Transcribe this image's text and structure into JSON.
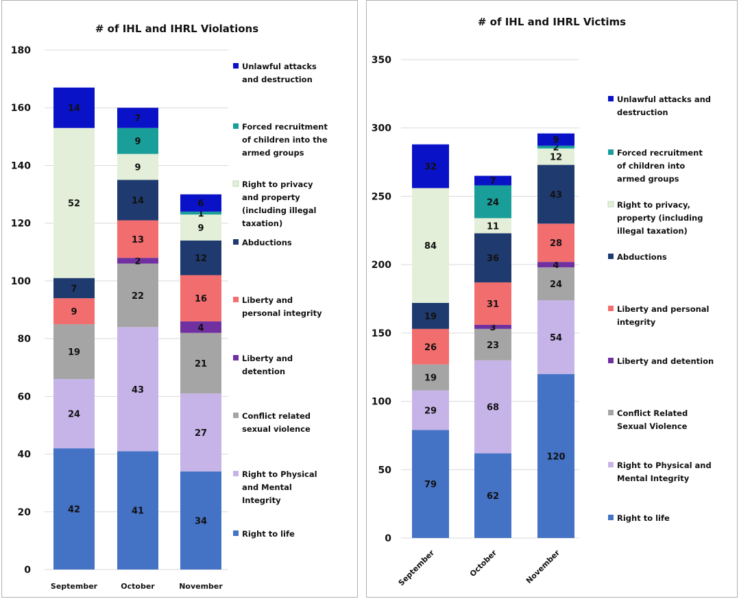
{
  "chart_data": [
    {
      "type": "bar",
      "stacked": true,
      "title": "# of IHL and IHRL Violations",
      "xlabel": "",
      "ylabel": "",
      "categories": [
        "September",
        "October",
        "November"
      ],
      "ylim": [
        0,
        180
      ],
      "yticks": [
        0,
        20,
        40,
        60,
        80,
        100,
        120,
        140,
        160,
        180
      ],
      "grid": true,
      "legend_position": "right",
      "series": [
        {
          "name": "Right to life",
          "values": [
            42,
            41,
            34
          ],
          "color": "#4472c4"
        },
        {
          "name": "Right to Physical and Mental Integrity",
          "values": [
            24,
            43,
            27
          ],
          "color": "#c6b3e8"
        },
        {
          "name": "Conflict related sexual violence",
          "values": [
            19,
            22,
            21
          ],
          "color": "#a5a5a5"
        },
        {
          "name": "Liberty and detention",
          "values": [
            0,
            2,
            4
          ],
          "color": "#7030a0"
        },
        {
          "name": "Liberty and personal integrity",
          "values": [
            9,
            13,
            16
          ],
          "color": "#f26d6d"
        },
        {
          "name": "Abductions",
          "values": [
            7,
            14,
            12
          ],
          "color": "#1f3a6e"
        },
        {
          "name": "Right to privacy and property (including illegal taxation)",
          "values": [
            52,
            9,
            9
          ],
          "color": "#e3efd9"
        },
        {
          "name": "Forced recruitment of children into the armed groups",
          "values": [
            0,
            9,
            1
          ],
          "color": "#1a9e9a"
        },
        {
          "name": "Unlawful attacks and destruction",
          "values": [
            14,
            7,
            6
          ],
          "color": "#0a12c8"
        }
      ],
      "legend": [
        {
          "lines": [
            "Unlawful attacks",
            "and destruction"
          ],
          "color": "#0a12c8"
        },
        {
          "lines": [
            "Forced recruitment",
            "of children into the",
            "armed groups"
          ],
          "color": "#1a9e9a"
        },
        {
          "lines": [
            "Right to privacy",
            "and property",
            "(including illegal",
            "taxation)"
          ],
          "color": "#e3efd9"
        },
        {
          "lines": [
            "Abductions"
          ],
          "color": "#1f3a6e"
        },
        {
          "lines": [
            "Liberty and",
            "personal integrity"
          ],
          "color": "#f26d6d"
        },
        {
          "lines": [
            "Liberty and",
            "detention"
          ],
          "color": "#7030a0"
        },
        {
          "lines": [
            "Conflict related",
            "sexual violence"
          ],
          "color": "#a5a5a5"
        },
        {
          "lines": [
            "Right to Physical",
            "and Mental",
            "Integrity"
          ],
          "color": "#c6b3e8"
        },
        {
          "lines": [
            "Right to life"
          ],
          "color": "#4472c4"
        }
      ]
    },
    {
      "type": "bar",
      "stacked": true,
      "title": "# of IHL and IHRL Victims",
      "xlabel": "",
      "ylabel": "",
      "categories": [
        "September",
        "October",
        "November"
      ],
      "ylim": [
        0,
        350
      ],
      "yticks": [
        0,
        50,
        100,
        150,
        200,
        250,
        300,
        350
      ],
      "grid": true,
      "legend_position": "right",
      "series": [
        {
          "name": "Right to life",
          "values": [
            79,
            62,
            120
          ],
          "color": "#4472c4"
        },
        {
          "name": "Right to Physical and Mental Integrity",
          "values": [
            29,
            68,
            54
          ],
          "color": "#c6b3e8"
        },
        {
          "name": "Conflict Related Sexual Violence",
          "values": [
            19,
            23,
            24
          ],
          "color": "#a5a5a5"
        },
        {
          "name": "Liberty and detention",
          "values": [
            0,
            3,
            4
          ],
          "color": "#7030a0"
        },
        {
          "name": "Liberty and personal integrity",
          "values": [
            26,
            31,
            28
          ],
          "color": "#f26d6d"
        },
        {
          "name": "Abductions",
          "values": [
            19,
            36,
            43
          ],
          "color": "#1f3a6e"
        },
        {
          "name": "Right to privacy, property (including illegal taxation)",
          "values": [
            84,
            11,
            12
          ],
          "color": "#e3efd9"
        },
        {
          "name": "Forced recruitment of children into armed groups",
          "values": [
            0,
            24,
            2
          ],
          "color": "#1a9e9a"
        },
        {
          "name": "Unlawful attacks and destruction",
          "values": [
            32,
            7,
            9
          ],
          "color": "#0a12c8"
        }
      ],
      "legend": [
        {
          "lines": [
            "Unlawful attacks and",
            "destruction"
          ],
          "color": "#0a12c8"
        },
        {
          "lines": [
            "Forced recruitment",
            "of children into",
            "armed groups"
          ],
          "color": "#1a9e9a"
        },
        {
          "lines": [
            "Right to privacy,",
            "property (including",
            "illegal taxation)"
          ],
          "color": "#e3efd9"
        },
        {
          "lines": [
            "Abductions"
          ],
          "color": "#1f3a6e"
        },
        {
          "lines": [
            "Liberty and personal",
            "integrity"
          ],
          "color": "#f26d6d"
        },
        {
          "lines": [
            "Liberty and detention"
          ],
          "color": "#7030a0"
        },
        {
          "lines": [
            "Conflict Related",
            "Sexual Violence"
          ],
          "color": "#a5a5a5"
        },
        {
          "lines": [
            "Right to Physical and",
            "Mental Integrity"
          ],
          "color": "#c6b3e8"
        },
        {
          "lines": [
            "Right to life"
          ],
          "color": "#4472c4"
        }
      ]
    }
  ]
}
